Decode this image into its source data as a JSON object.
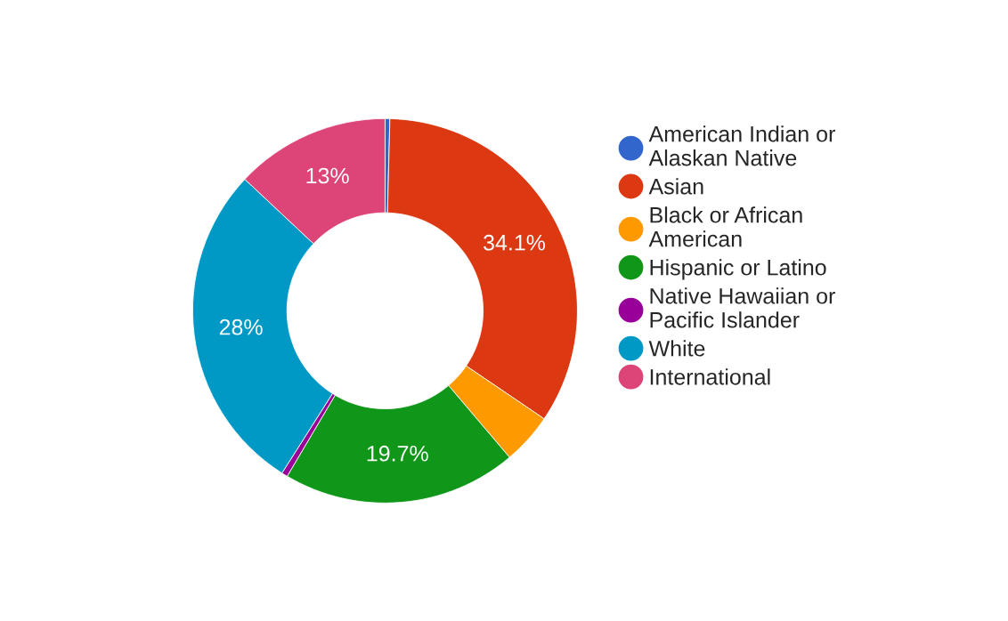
{
  "chart_data": {
    "type": "donut",
    "categories": [
      "American Indian or Alaskan Native",
      "Asian",
      "Black or African American",
      "Hispanic or Latino",
      "Native Hawaiian or Pacific Islander",
      "White",
      "International"
    ],
    "values": [
      0.4,
      34.1,
      4.3,
      19.7,
      0.5,
      28,
      13
    ],
    "colors": [
      "#3366cc",
      "#dc3912",
      "#ff9900",
      "#109618",
      "#990099",
      "#0099c6",
      "#dd4477"
    ],
    "value_labels": [
      null,
      "34.1%",
      null,
      "19.7%",
      null,
      "28%",
      "13%"
    ],
    "legend": "right"
  }
}
